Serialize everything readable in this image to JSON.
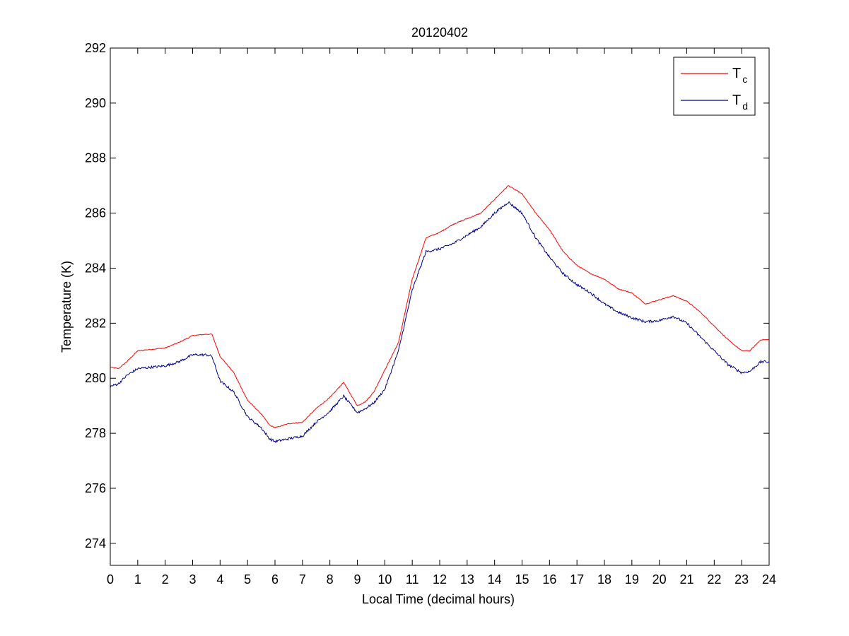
{
  "chart_data": {
    "type": "line",
    "title": "20120402",
    "xlabel": "Local Time (decimal hours)",
    "ylabel": "Temperature (K)",
    "xlim": [
      0,
      24
    ],
    "ylim": [
      273.2,
      292
    ],
    "xticks": [
      0,
      1,
      2,
      3,
      4,
      5,
      6,
      7,
      8,
      9,
      10,
      11,
      12,
      13,
      14,
      15,
      16,
      17,
      18,
      19,
      20,
      21,
      22,
      23,
      24
    ],
    "yticks": [
      274,
      276,
      278,
      280,
      282,
      284,
      286,
      288,
      290,
      292
    ],
    "grid": false,
    "legend_position": "top-right",
    "series": [
      {
        "name": "T",
        "subscript": "c",
        "color": "#ff0000",
        "points": [
          [
            0,
            280.4
          ],
          [
            0.3,
            280.35
          ],
          [
            0.6,
            280.6
          ],
          [
            1,
            281.0
          ],
          [
            1.5,
            281.05
          ],
          [
            2,
            281.1
          ],
          [
            2.5,
            281.3
          ],
          [
            3,
            281.55
          ],
          [
            3.5,
            281.6
          ],
          [
            3.7,
            281.6
          ],
          [
            4,
            280.8
          ],
          [
            4.5,
            280.2
          ],
          [
            5,
            279.2
          ],
          [
            5.5,
            278.7
          ],
          [
            5.8,
            278.3
          ],
          [
            6,
            278.2
          ],
          [
            6.5,
            278.35
          ],
          [
            7,
            278.4
          ],
          [
            7.5,
            278.9
          ],
          [
            8,
            279.3
          ],
          [
            8.5,
            279.85
          ],
          [
            9,
            279.0
          ],
          [
            9.3,
            279.15
          ],
          [
            9.6,
            279.5
          ],
          [
            10,
            280.3
          ],
          [
            10.5,
            281.3
          ],
          [
            11,
            283.6
          ],
          [
            11.5,
            285.1
          ],
          [
            12,
            285.3
          ],
          [
            12.5,
            285.6
          ],
          [
            13,
            285.8
          ],
          [
            13.5,
            286.0
          ],
          [
            14,
            286.5
          ],
          [
            14.5,
            287.0
          ],
          [
            15,
            286.7
          ],
          [
            15.5,
            286.0
          ],
          [
            16,
            285.4
          ],
          [
            16.5,
            284.6
          ],
          [
            17,
            284.1
          ],
          [
            17.5,
            283.8
          ],
          [
            18,
            283.6
          ],
          [
            18.5,
            283.25
          ],
          [
            19,
            283.1
          ],
          [
            19.5,
            282.7
          ],
          [
            20,
            282.85
          ],
          [
            20.5,
            283.0
          ],
          [
            21,
            282.8
          ],
          [
            21.5,
            282.4
          ],
          [
            22,
            281.9
          ],
          [
            22.5,
            281.4
          ],
          [
            23,
            281.0
          ],
          [
            23.3,
            281.0
          ],
          [
            23.7,
            281.4
          ],
          [
            24,
            281.4
          ]
        ]
      },
      {
        "name": "T",
        "subscript": "d",
        "color": "#00008b",
        "points": [
          [
            0,
            279.7
          ],
          [
            0.3,
            279.8
          ],
          [
            0.6,
            280.1
          ],
          [
            1,
            280.35
          ],
          [
            1.5,
            280.4
          ],
          [
            2,
            280.45
          ],
          [
            2.5,
            280.6
          ],
          [
            3,
            280.85
          ],
          [
            3.5,
            280.85
          ],
          [
            3.7,
            280.8
          ],
          [
            4,
            279.9
          ],
          [
            4.5,
            279.5
          ],
          [
            5,
            278.6
          ],
          [
            5.5,
            278.2
          ],
          [
            5.8,
            277.8
          ],
          [
            6,
            277.7
          ],
          [
            6.5,
            277.8
          ],
          [
            7,
            277.9
          ],
          [
            7.5,
            278.4
          ],
          [
            8,
            278.8
          ],
          [
            8.5,
            279.35
          ],
          [
            9,
            278.75
          ],
          [
            9.3,
            278.9
          ],
          [
            9.6,
            279.1
          ],
          [
            10,
            279.6
          ],
          [
            10.5,
            281.0
          ],
          [
            11,
            283.2
          ],
          [
            11.5,
            284.6
          ],
          [
            12,
            284.7
          ],
          [
            12.5,
            284.9
          ],
          [
            13,
            285.2
          ],
          [
            13.5,
            285.5
          ],
          [
            14,
            286.0
          ],
          [
            14.5,
            286.4
          ],
          [
            15,
            286.0
          ],
          [
            15.5,
            285.1
          ],
          [
            16,
            284.4
          ],
          [
            16.5,
            283.8
          ],
          [
            17,
            283.4
          ],
          [
            17.5,
            283.1
          ],
          [
            18,
            282.7
          ],
          [
            18.5,
            282.4
          ],
          [
            19,
            282.2
          ],
          [
            19.5,
            282.05
          ],
          [
            20,
            282.1
          ],
          [
            20.5,
            282.25
          ],
          [
            21,
            282.0
          ],
          [
            21.5,
            281.5
          ],
          [
            22,
            281.0
          ],
          [
            22.5,
            280.5
          ],
          [
            23,
            280.2
          ],
          [
            23.3,
            280.25
          ],
          [
            23.7,
            280.6
          ],
          [
            24,
            280.6
          ]
        ]
      }
    ]
  }
}
